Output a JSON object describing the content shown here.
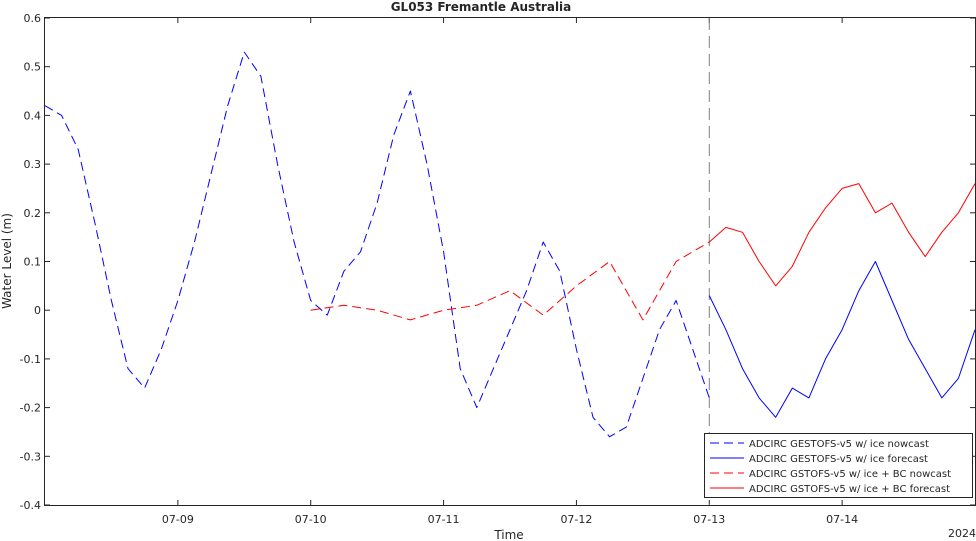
{
  "chart_data": {
    "type": "line",
    "title": "GL053 Fremantle Australia",
    "xlabel": "Time",
    "ylabel": "Water Level (m)",
    "year_label": "2024",
    "xlim": [
      "2024-07-08T00:00",
      "2024-07-15T00:00"
    ],
    "ylim": [
      -0.4,
      0.6
    ],
    "y_ticks": [
      -0.4,
      -0.3,
      -0.2,
      -0.1,
      0,
      0.1,
      0.2,
      0.3,
      0.4,
      0.5,
      0.6
    ],
    "y_tick_labels": [
      "-0.4",
      "-0.3",
      "-0.2",
      "-0.1",
      "0",
      "0.1",
      "0.2",
      "0.3",
      "0.4",
      "0.5",
      "0.6"
    ],
    "x_ticks": [
      "2024-07-09T00:00",
      "2024-07-10T00:00",
      "2024-07-11T00:00",
      "2024-07-12T00:00",
      "2024-07-13T00:00",
      "2024-07-14T00:00"
    ],
    "x_tick_labels": [
      "07-09",
      "07-10",
      "07-11",
      "07-12",
      "07-13",
      "07-14"
    ],
    "vline": "2024-07-13T00:00",
    "legend_position": "bottom-right",
    "grid": false,
    "series": [
      {
        "name": "ADCIRC GESTOFS-v5 w/ ice nowcast",
        "color": "#0000ff",
        "dash": "dashed",
        "x": [
          "2024-07-08T00:00",
          "2024-07-08T03:00",
          "2024-07-08T06:00",
          "2024-07-08T09:00",
          "2024-07-08T12:00",
          "2024-07-08T15:00",
          "2024-07-08T18:00",
          "2024-07-08T21:00",
          "2024-07-09T00:00",
          "2024-07-09T03:00",
          "2024-07-09T06:00",
          "2024-07-09T09:00",
          "2024-07-09T12:00",
          "2024-07-09T15:00",
          "2024-07-09T18:00",
          "2024-07-09T21:00",
          "2024-07-10T00:00",
          "2024-07-10T03:00",
          "2024-07-10T06:00",
          "2024-07-10T09:00",
          "2024-07-10T12:00",
          "2024-07-10T15:00",
          "2024-07-10T18:00",
          "2024-07-10T21:00",
          "2024-07-11T00:00",
          "2024-07-11T03:00",
          "2024-07-11T06:00",
          "2024-07-11T09:00",
          "2024-07-11T12:00",
          "2024-07-11T15:00",
          "2024-07-11T18:00",
          "2024-07-11T21:00",
          "2024-07-12T00:00",
          "2024-07-12T03:00",
          "2024-07-12T06:00",
          "2024-07-12T09:00",
          "2024-07-12T12:00",
          "2024-07-12T15:00",
          "2024-07-12T18:00",
          "2024-07-12T21:00",
          "2024-07-13T00:00"
        ],
        "y": [
          0.42,
          0.4,
          0.33,
          0.18,
          0.02,
          -0.12,
          -0.16,
          -0.08,
          0.02,
          0.14,
          0.28,
          0.42,
          0.53,
          0.48,
          0.3,
          0.14,
          0.02,
          -0.01,
          0.08,
          0.12,
          0.22,
          0.36,
          0.45,
          0.3,
          0.12,
          -0.12,
          -0.2,
          -0.12,
          -0.04,
          0.04,
          0.14,
          0.08,
          -0.08,
          -0.22,
          -0.26,
          -0.24,
          -0.14,
          -0.04,
          0.02,
          -0.08,
          -0.18
        ]
      },
      {
        "name": "ADCIRC GESTOFS-v5 w/ ice forecast",
        "color": "#0000ff",
        "dash": "solid",
        "x": [
          "2024-07-13T00:00",
          "2024-07-13T03:00",
          "2024-07-13T06:00",
          "2024-07-13T09:00",
          "2024-07-13T12:00",
          "2024-07-13T15:00",
          "2024-07-13T18:00",
          "2024-07-13T21:00",
          "2024-07-14T00:00",
          "2024-07-14T03:00",
          "2024-07-14T06:00",
          "2024-07-14T09:00",
          "2024-07-14T12:00",
          "2024-07-14T15:00",
          "2024-07-14T18:00",
          "2024-07-14T21:00",
          "2024-07-15T00:00"
        ],
        "y": [
          0.03,
          -0.04,
          -0.12,
          -0.18,
          -0.22,
          -0.16,
          -0.18,
          -0.1,
          -0.04,
          0.04,
          0.1,
          0.02,
          -0.06,
          -0.12,
          -0.18,
          -0.14,
          -0.04
        ]
      },
      {
        "name": "ADCIRC GSTOFS-v5 w/ ice + BC nowcast",
        "color": "#ff0000",
        "dash": "dashed",
        "x": [
          "2024-07-10T00:00",
          "2024-07-10T06:00",
          "2024-07-10T12:00",
          "2024-07-10T18:00",
          "2024-07-11T00:00",
          "2024-07-11T06:00",
          "2024-07-11T12:00",
          "2024-07-11T18:00",
          "2024-07-12T00:00",
          "2024-07-12T06:00",
          "2024-07-12T12:00",
          "2024-07-12T18:00",
          "2024-07-13T00:00"
        ],
        "y": [
          0.0,
          0.01,
          0.0,
          -0.02,
          0.0,
          0.01,
          0.04,
          -0.01,
          0.05,
          0.1,
          -0.02,
          0.1,
          0.14
        ]
      },
      {
        "name": "ADCIRC GSTOFS-v5 w/ ice + BC forecast",
        "color": "#ff0000",
        "dash": "solid",
        "x": [
          "2024-07-13T00:00",
          "2024-07-13T03:00",
          "2024-07-13T06:00",
          "2024-07-13T09:00",
          "2024-07-13T12:00",
          "2024-07-13T15:00",
          "2024-07-13T18:00",
          "2024-07-13T21:00",
          "2024-07-14T00:00",
          "2024-07-14T03:00",
          "2024-07-14T06:00",
          "2024-07-14T09:00",
          "2024-07-14T12:00",
          "2024-07-14T15:00",
          "2024-07-14T18:00",
          "2024-07-14T21:00",
          "2024-07-15T00:00"
        ],
        "y": [
          0.14,
          0.17,
          0.16,
          0.1,
          0.05,
          0.09,
          0.16,
          0.21,
          0.25,
          0.26,
          0.2,
          0.22,
          0.16,
          0.11,
          0.16,
          0.2,
          0.26
        ]
      }
    ]
  }
}
